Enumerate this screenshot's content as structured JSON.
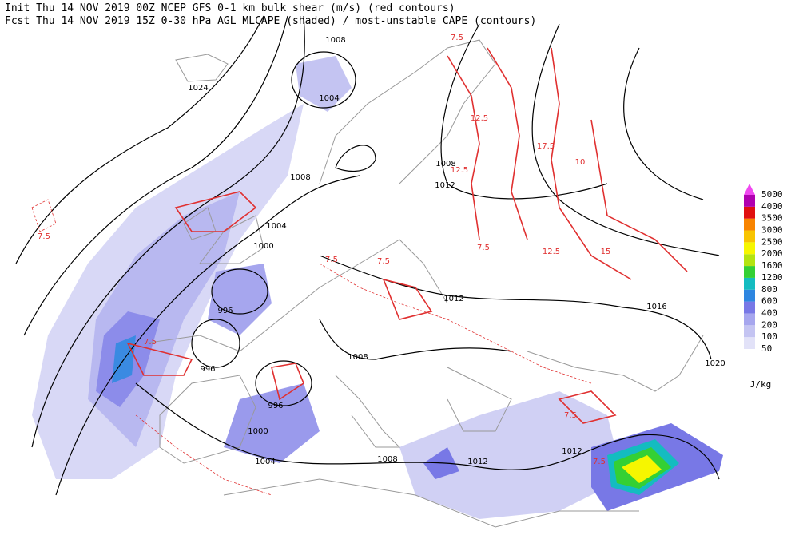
{
  "header": {
    "init": "Init  Thu 14 NOV 2019 00Z  NCEP GFS 0-1 km bulk shear (m/s) (red contours)",
    "fcst": "Fcst Thu 14 NOV 2019 15Z  0-30 hPa AGL MLCAPE (shaded) / most-unstable CAPE (contours)"
  },
  "isobar_labels": [
    "1008",
    "1024",
    "1004",
    "1008",
    "1008",
    "1012",
    "1004",
    "1000",
    "996",
    "996",
    "1012",
    "1016",
    "1020",
    "1008",
    "996",
    "1000",
    "1004",
    "1008",
    "1012",
    "1012"
  ],
  "shear_labels": [
    "7.5",
    "12.5",
    "17.5",
    "10",
    "12.5",
    "15",
    "7.5",
    "7.5",
    "7.5",
    "7.5",
    "12.5",
    "7.5",
    "7.5",
    "7.5"
  ],
  "colorbar": {
    "levels": [
      50,
      100,
      200,
      400,
      600,
      800,
      1200,
      1600,
      2000,
      2500,
      3000,
      3500,
      4000,
      5000
    ],
    "colors": [
      "#e2e2f8",
      "#c4c4f2",
      "#a6a6ee",
      "#7878e6",
      "#2e86e0",
      "#14bcc0",
      "#34d034",
      "#b4e410",
      "#f6f600",
      "#f8c400",
      "#f88400",
      "#e01010",
      "#b000b0",
      "#f048f0"
    ],
    "unit": "J/kg"
  }
}
